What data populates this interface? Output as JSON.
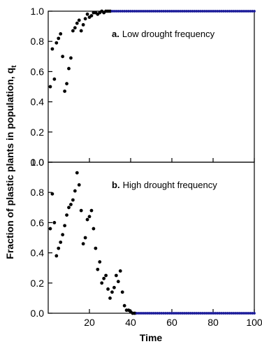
{
  "chart_data": {
    "type": "scatter",
    "ylabel_main": "Fraction of plastic plants in population, q",
    "ylabel_sub": "t",
    "xlabel": "Time",
    "xlim": [
      0,
      100
    ],
    "ylim": [
      0.0,
      1.0
    ],
    "x_ticks": [
      20,
      40,
      60,
      80,
      100
    ],
    "y_ticks": [
      "0.0",
      "0.2",
      "0.4",
      "0.6",
      "0.8",
      "1.0"
    ],
    "y_tick_values": [
      0.0,
      0.2,
      0.4,
      0.6,
      0.8,
      1.0
    ],
    "grid": false,
    "marker_color": "#000000",
    "tail_marker_color": "#1a1a99",
    "panels": [
      {
        "id": "a",
        "label_letter": "a.",
        "label_text": "Low drought frequency",
        "points_early": [
          [
            1,
            0.5
          ],
          [
            2,
            0.75
          ],
          [
            3,
            0.55
          ],
          [
            4,
            0.79
          ],
          [
            5,
            0.82
          ],
          [
            6,
            0.85
          ],
          [
            7,
            0.7
          ],
          [
            8,
            0.47
          ],
          [
            9,
            0.52
          ],
          [
            10,
            0.62
          ],
          [
            11,
            0.69
          ],
          [
            12,
            0.87
          ],
          [
            13,
            0.89
          ],
          [
            14,
            0.92
          ],
          [
            15,
            0.94
          ],
          [
            16,
            0.87
          ],
          [
            17,
            0.91
          ],
          [
            18,
            0.95
          ],
          [
            19,
            0.98
          ],
          [
            20,
            0.96
          ],
          [
            21,
            0.97
          ],
          [
            22,
            0.99
          ],
          [
            23,
            0.99
          ],
          [
            24,
            0.98
          ],
          [
            25,
            0.99
          ],
          [
            26,
            1.0
          ],
          [
            27,
            0.99
          ],
          [
            28,
            1.0
          ],
          [
            29,
            1.0
          ],
          [
            30,
            1.0
          ]
        ],
        "tail_start": 31,
        "tail_end": 100,
        "tail_value": 1.0
      },
      {
        "id": "b",
        "label_letter": "b.",
        "label_text": "High drought frequency",
        "points_early": [
          [
            1,
            0.56
          ],
          [
            2,
            0.79
          ],
          [
            3,
            0.6
          ],
          [
            4,
            0.38
          ],
          [
            5,
            0.43
          ],
          [
            6,
            0.47
          ],
          [
            7,
            0.52
          ],
          [
            8,
            0.58
          ],
          [
            9,
            0.65
          ],
          [
            10,
            0.7
          ],
          [
            11,
            0.72
          ],
          [
            12,
            0.75
          ],
          [
            13,
            0.81
          ],
          [
            14,
            0.93
          ],
          [
            15,
            0.85
          ],
          [
            16,
            0.68
          ],
          [
            17,
            0.46
          ],
          [
            18,
            0.5
          ],
          [
            19,
            0.62
          ],
          [
            20,
            0.64
          ],
          [
            21,
            0.68
          ],
          [
            22,
            0.56
          ],
          [
            23,
            0.43
          ],
          [
            24,
            0.29
          ],
          [
            25,
            0.34
          ],
          [
            26,
            0.2
          ],
          [
            27,
            0.23
          ],
          [
            28,
            0.25
          ],
          [
            29,
            0.16
          ],
          [
            30,
            0.1
          ],
          [
            31,
            0.14
          ],
          [
            32,
            0.17
          ],
          [
            33,
            0.25
          ],
          [
            34,
            0.21
          ],
          [
            35,
            0.28
          ],
          [
            36,
            0.14
          ],
          [
            37,
            0.05
          ],
          [
            38,
            0.02
          ],
          [
            39,
            0.02
          ],
          [
            40,
            0.01
          ],
          [
            41,
            0.0
          ],
          [
            42,
            0.0
          ]
        ],
        "tail_start": 43,
        "tail_end": 100,
        "tail_value": 0.0
      }
    ]
  }
}
